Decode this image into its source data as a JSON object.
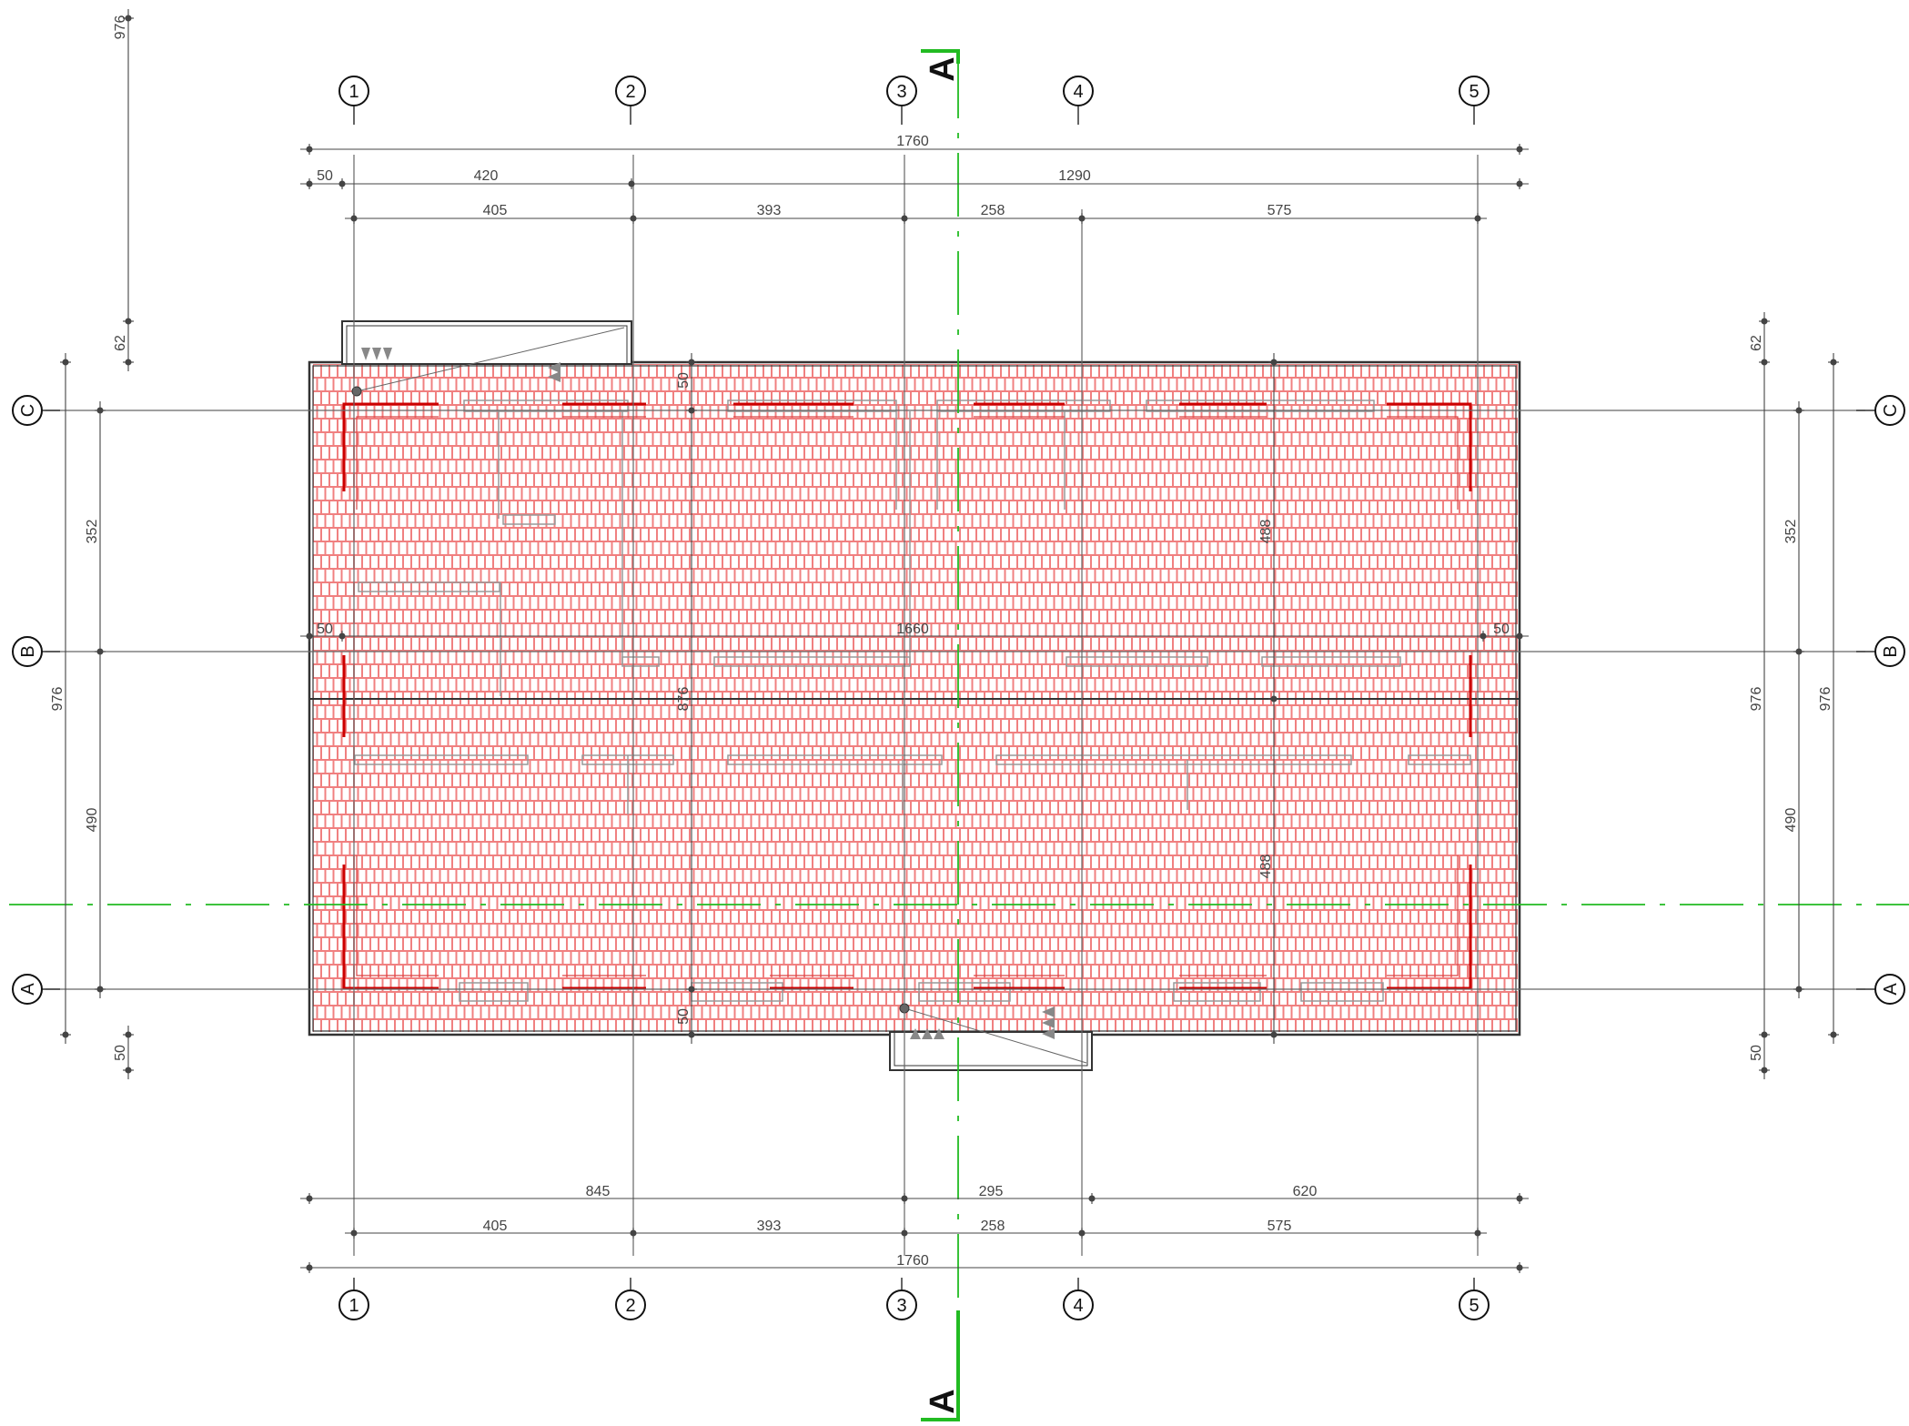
{
  "colors": {
    "tiles": "#f08080",
    "walls": "#cc0000",
    "section_line": "#22bb22",
    "dimension": "#444444",
    "outline": "#333333",
    "grid": "#555555",
    "underlay": "#999999"
  },
  "axes_numbers": [
    "1",
    "2",
    "3",
    "4",
    "5"
  ],
  "axes_letters": [
    "C",
    "B",
    "A"
  ],
  "section": {
    "label": "A"
  },
  "dims_top": {
    "overall": "1760",
    "row2": [
      "50",
      "420",
      "1290"
    ],
    "row3": [
      "405",
      "393",
      "258",
      "575"
    ]
  },
  "dims_bottom": {
    "row1": [
      "845",
      "295",
      "620"
    ],
    "row2": [
      "405",
      "393",
      "258",
      "575"
    ],
    "overall": "1760"
  },
  "dims_left": {
    "outer_upper": "976",
    "outer_upper_small": "62",
    "total": "976",
    "bays": [
      "352",
      "490"
    ],
    "bottom_small": "50"
  },
  "dims_right": {
    "small_top": "62",
    "total_inner": "976",
    "total_outer": "976",
    "bays": [
      "352",
      "490"
    ],
    "bottom_small": "50"
  },
  "dims_interior": {
    "eave_top": "50",
    "eave_bottom": "50",
    "ridge_span": "1660",
    "left_overhang": "50",
    "right_overhang": "50",
    "depth": "876",
    "slope_upper": "488",
    "slope_lower": "488"
  }
}
